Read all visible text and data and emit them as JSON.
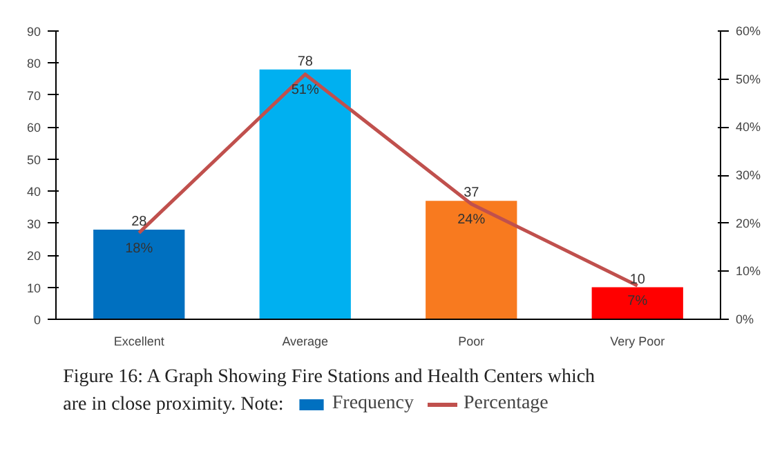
{
  "chart_data": {
    "type": "bar",
    "categories": [
      "Excellent",
      "Average",
      "Poor",
      "Very Poor"
    ],
    "series": [
      {
        "name": "Frequency",
        "color": "#0070c0",
        "colors": [
          "#0070c0",
          "#00b0f0",
          "#f87a1f",
          "#ff0000"
        ],
        "values": [
          28,
          78,
          37,
          10
        ]
      },
      {
        "name": "Percentage",
        "type": "line",
        "axis": "y2",
        "color": "#c0504d",
        "values": [
          18,
          51,
          24,
          7
        ]
      }
    ],
    "ylim": [
      0,
      90
    ],
    "yticks": [
      0,
      10,
      20,
      30,
      40,
      50,
      60,
      70,
      80,
      90
    ],
    "y2lim": [
      0,
      60
    ],
    "y2ticks": [
      {
        "value": 0,
        "label": "0%"
      },
      {
        "value": 10,
        "label": "10%"
      },
      {
        "value": 20,
        "label": "20%"
      },
      {
        "value": 30,
        "label": "30%"
      },
      {
        "value": 40,
        "label": "40%"
      },
      {
        "value": 50,
        "label": "50%"
      },
      {
        "value": 60,
        "label": "60%"
      }
    ],
    "value_labels": [
      [
        "28",
        "78",
        "37",
        "10"
      ],
      [
        "18%",
        "51%",
        "24%",
        "7%"
      ]
    ],
    "annotations": [
      "Figure 16: A Graph Showing Fire Stations and Health Centers which",
      "are in close proximity. Note:"
    ],
    "legend": "bottom",
    "grid": false
  }
}
